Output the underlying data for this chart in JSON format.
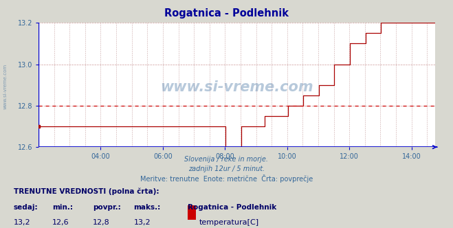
{
  "title": "Rogatnica - Podlehnik",
  "title_color": "#000099",
  "bg_color": "#d8d8d0",
  "plot_bg_color": "#ffffff",
  "line_color": "#aa0000",
  "grid_color_h": "#cc9999",
  "grid_color_v": "#ccaaaa",
  "avg_line_color": "#cc0000",
  "avg_value": 12.8,
  "xaxis_color": "#0000cc",
  "yaxis_color": "#0000cc",
  "tick_label_color": "#336699",
  "ylim": [
    12.6,
    13.2
  ],
  "yticks": [
    12.6,
    12.8,
    13.0,
    13.2
  ],
  "xtick_hours": [
    4,
    6,
    8,
    10,
    12,
    14
  ],
  "xtick_labels": [
    "04:00",
    "06:00",
    "08:00",
    "10:00",
    "12:00",
    "14:00"
  ],
  "footer_lines": [
    "Slovenija / reke in morje.",
    "zadnjih 12ur / 5 minut.",
    "Meritve: trenutne  Enote: metrične  Črta: povprečje"
  ],
  "footer_color": "#336699",
  "bottom_label_color": "#000066",
  "bottom_title": "TRENUTNE VREDNOSTI (polna črta):",
  "bottom_headers": [
    "sedaj:",
    "min.:",
    "povpr.:",
    "maks.:"
  ],
  "bottom_header5": "Rogatnica - Podlehnik",
  "bottom_values": [
    "13,2",
    "12,6",
    "12,8",
    "13,2"
  ],
  "bottom_series": "temperatura[C]",
  "bottom_series_color": "#cc0000",
  "watermark": "www.si-vreme.com",
  "watermark_color": "#336699",
  "x_start_min": 120,
  "x_end_min": 885,
  "temp_data": [
    [
      120,
      12.7
    ],
    [
      480,
      12.7
    ],
    [
      481,
      12.6
    ],
    [
      510,
      12.6
    ],
    [
      511,
      12.7
    ],
    [
      555,
      12.7
    ],
    [
      556,
      12.75
    ],
    [
      600,
      12.75
    ],
    [
      601,
      12.8
    ],
    [
      630,
      12.8
    ],
    [
      631,
      12.85
    ],
    [
      660,
      12.85
    ],
    [
      661,
      12.9
    ],
    [
      690,
      12.9
    ],
    [
      691,
      13.0
    ],
    [
      720,
      13.0
    ],
    [
      721,
      13.1
    ],
    [
      750,
      13.1
    ],
    [
      751,
      13.15
    ],
    [
      780,
      13.15
    ],
    [
      781,
      13.2
    ],
    [
      885,
      13.2
    ]
  ]
}
